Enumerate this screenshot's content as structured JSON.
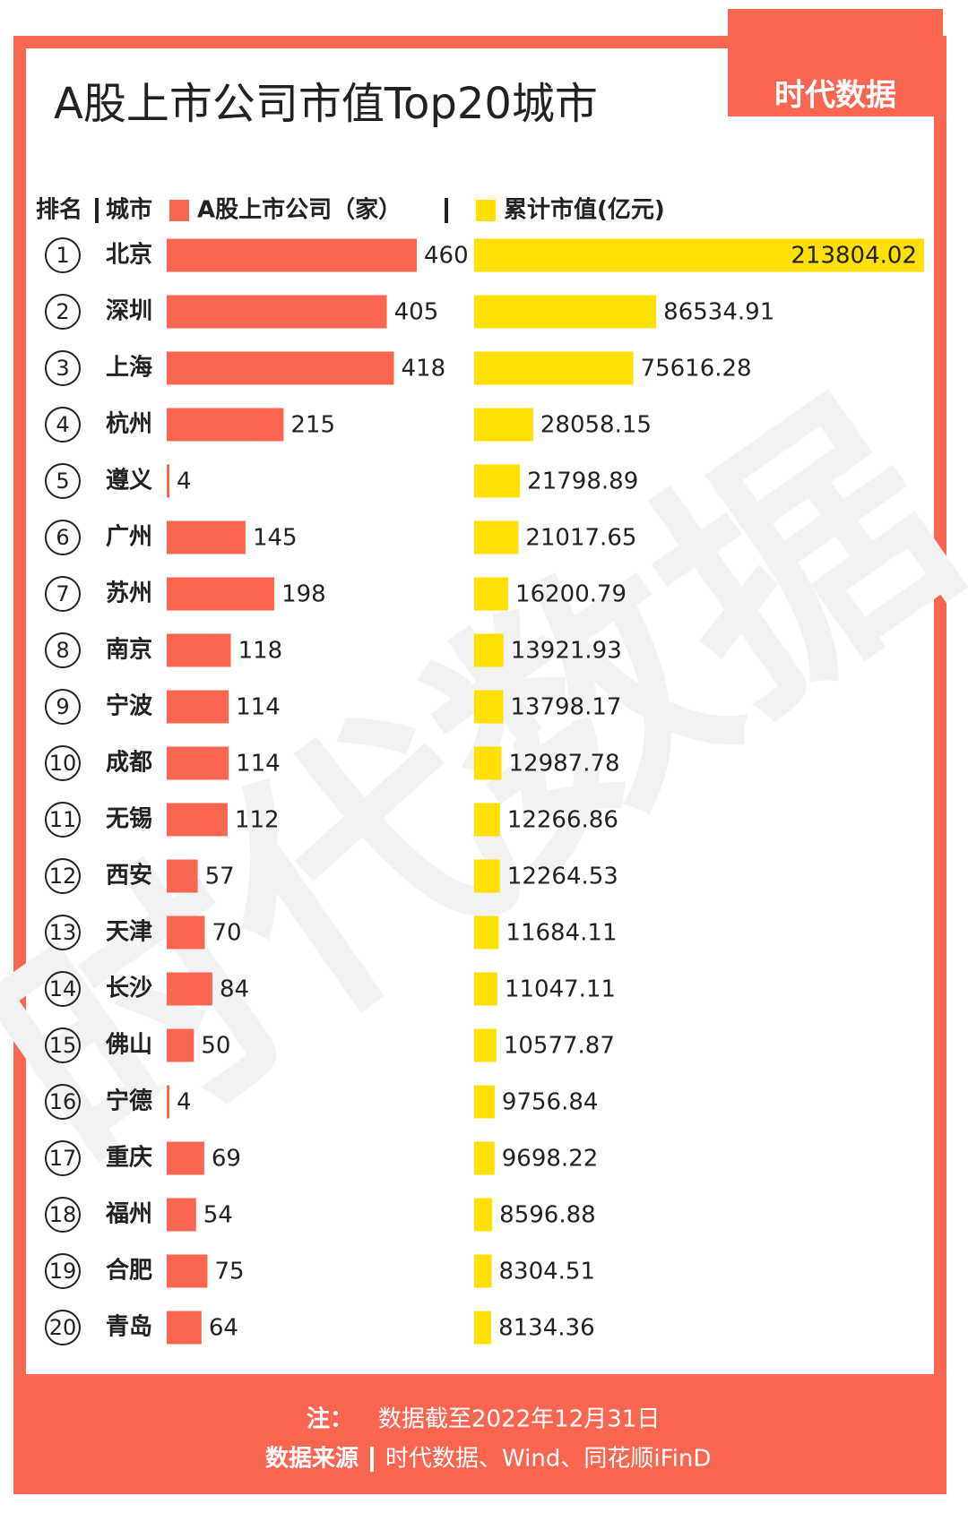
{
  "chart_data": {
    "type": "bar",
    "title": "A股上市公司市值Top20城市",
    "logo": "时代数据",
    "watermark": "时代数据",
    "header_rank": "排名",
    "header_city": "城市",
    "ranks": [
      1,
      2,
      3,
      4,
      5,
      6,
      7,
      8,
      9,
      10,
      11,
      12,
      13,
      14,
      15,
      16,
      17,
      18,
      19,
      20
    ],
    "categories": [
      "北京",
      "深圳",
      "上海",
      "杭州",
      "遵义",
      "广州",
      "苏州",
      "南京",
      "宁波",
      "成都",
      "无锡",
      "西安",
      "天津",
      "长沙",
      "佛山",
      "宁德",
      "重庆",
      "福州",
      "合肥",
      "青岛"
    ],
    "series": [
      {
        "name": "A股上市公司（家）",
        "color": "#fa6650",
        "values": [
          460,
          405,
          418,
          215,
          4,
          145,
          198,
          118,
          114,
          114,
          112,
          57,
          70,
          84,
          50,
          4,
          69,
          54,
          75,
          64
        ]
      },
      {
        "name": "累计市值(亿元)",
        "color": "#ffe000",
        "values": [
          213804.02,
          86534.91,
          75616.28,
          28058.15,
          21798.89,
          21017.65,
          16200.79,
          13921.93,
          13798.17,
          12987.78,
          12266.86,
          12264.53,
          11684.11,
          11047.11,
          10577.87,
          9756.84,
          9698.22,
          8596.88,
          8304.51,
          8134.36
        ]
      }
    ],
    "note_label": "注：",
    "note": "数据截至2022年12月31日",
    "source_label": "数据来源",
    "source": "时代数据、Wind、同花顺iFinD"
  }
}
